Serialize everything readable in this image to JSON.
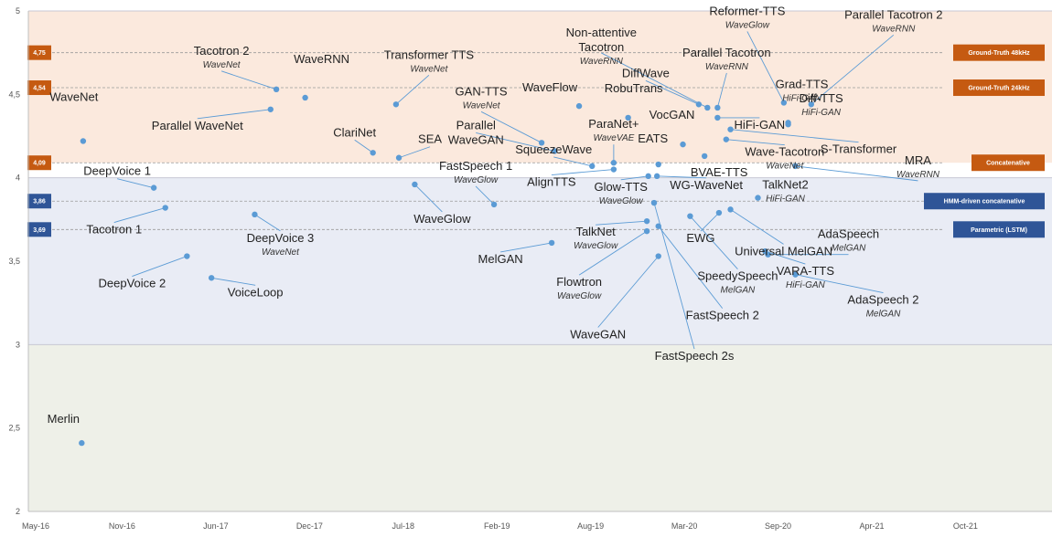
{
  "chart_data": {
    "type": "scatter",
    "title": "",
    "xlabel": "",
    "ylabel": "",
    "ylim": [
      2,
      5
    ],
    "yticks": [
      "2",
      "2,5",
      "3",
      "3,5",
      "4",
      "4,5",
      "5"
    ],
    "xticks": [
      "May-16",
      "Nov-16",
      "Jun-17",
      "Dec-17",
      "Jul-18",
      "Feb-19",
      "Aug-19",
      "Mar-20",
      "Sep-20",
      "Apr-21",
      "Oct-21"
    ],
    "xlim_months": [
      0,
      71
    ],
    "grid": false,
    "bands": [
      {
        "from": 4.09,
        "to": 5.0,
        "color": "#fbe9dd"
      },
      {
        "from": 3.0,
        "to": 4.0,
        "color": "#e9ecf5"
      },
      {
        "from": 2.0,
        "to": 3.0,
        "color": "#eef0e8"
      }
    ],
    "reference_lines": [
      {
        "value": 4.75,
        "left_label": "4,75",
        "right_label": "Ground-Truth 48kHz",
        "color": "#c55a11"
      },
      {
        "value": 4.54,
        "left_label": "4,54",
        "right_label": "Ground-Truth 24kHz",
        "color": "#c55a11"
      },
      {
        "value": 4.09,
        "left_label": "4,09",
        "right_label": "Concatenative",
        "color": "#c55a11"
      },
      {
        "value": 3.86,
        "left_label": "3,86",
        "right_label": "HMM-driven concatenative",
        "color": "#2f5597"
      },
      {
        "value": 3.69,
        "left_label": "3,69",
        "right_label": "Parametric (LSTM)",
        "color": "#2f5597"
      }
    ],
    "points": [
      {
        "name": "Merlin",
        "sub": "",
        "x": 3.7,
        "y": 2.41
      },
      {
        "name": "WaveNet",
        "sub": "",
        "x": 3.8,
        "y": 4.22
      },
      {
        "name": "DeepVoice 1",
        "sub": "",
        "x": 8.7,
        "y": 3.94
      },
      {
        "name": "Tacotron 1",
        "sub": "",
        "x": 9.5,
        "y": 3.82
      },
      {
        "name": "DeepVoice 2",
        "sub": "",
        "x": 11.0,
        "y": 3.53
      },
      {
        "name": "VoiceLoop",
        "sub": "",
        "x": 12.7,
        "y": 3.4
      },
      {
        "name": "DeepVoice 3",
        "sub": "WaveNet",
        "x": 15.7,
        "y": 3.78
      },
      {
        "name": "Parallel WaveNet",
        "sub": "",
        "x": 16.8,
        "y": 4.41
      },
      {
        "name": "Tacotron 2",
        "sub": "WaveNet",
        "x": 17.2,
        "y": 4.53
      },
      {
        "name": "WaveRNN",
        "sub": "",
        "x": 19.2,
        "y": 4.48
      },
      {
        "name": "ClariNet",
        "sub": "",
        "x": 23.9,
        "y": 4.15
      },
      {
        "name": "Transformer TTS",
        "sub": "WaveNet",
        "x": 25.5,
        "y": 4.44
      },
      {
        "name": "SEA",
        "sub": "",
        "x": 25.7,
        "y": 4.12
      },
      {
        "name": "WaveGlow",
        "sub": "",
        "x": 26.8,
        "y": 3.96
      },
      {
        "name": "FastSpeech 1",
        "sub": "WaveGlow",
        "x": 32.3,
        "y": 3.84
      },
      {
        "name": "GAN-TTS",
        "sub": "WaveNet",
        "x": 35.6,
        "y": 4.21
      },
      {
        "name": "Parallel WaveGAN",
        "sub": "",
        "x": 36.5,
        "y": 4.16
      },
      {
        "name": "MelGAN",
        "sub": "",
        "x": 36.3,
        "y": 3.61
      },
      {
        "name": "SqueezeWave",
        "sub": "",
        "x": 39.1,
        "y": 4.07
      },
      {
        "name": "ParaNet+",
        "sub": "WaveVAE",
        "x": 40.6,
        "y": 4.09
      },
      {
        "name": "WaveFlow",
        "sub": "",
        "x": 38.2,
        "y": 4.43
      },
      {
        "name": "AlignTTS",
        "sub": "",
        "x": 40.6,
        "y": 4.05
      },
      {
        "name": "RobuTrans",
        "sub": "",
        "x": 41.6,
        "y": 4.36
      },
      {
        "name": "TalkNet",
        "sub": "WaveGlow",
        "x": 42.9,
        "y": 3.74
      },
      {
        "name": "Flowtron",
        "sub": "WaveGlow",
        "x": 42.9,
        "y": 3.68
      },
      {
        "name": "Glow-TTS",
        "sub": "WaveGlow",
        "x": 43.0,
        "y": 4.01
      },
      {
        "name": "WaveGAN",
        "sub": "",
        "x": 43.7,
        "y": 3.53
      },
      {
        "name": "EATS",
        "sub": "",
        "x": 43.7,
        "y": 4.08
      },
      {
        "name": "FastSpeech 2",
        "sub": "",
        "x": 43.7,
        "y": 3.71
      },
      {
        "name": "FastSpeech 2s",
        "sub": "",
        "x": 43.4,
        "y": 3.85
      },
      {
        "name": "WG-WaveNet",
        "sub": "",
        "x": 43.6,
        "y": 4.01
      },
      {
        "name": "VocGAN",
        "sub": "",
        "x": 45.4,
        "y": 4.2
      },
      {
        "name": "DiffWave",
        "sub": "",
        "x": 46.5,
        "y": 4.44
      },
      {
        "name": "BVAE-TTS",
        "sub": "",
        "x": 46.9,
        "y": 4.13
      },
      {
        "name": "SpeedySpeech",
        "sub": "MelGAN",
        "x": 45.9,
        "y": 3.77
      },
      {
        "name": "Non-attentive Tacotron",
        "sub": "WaveRNN",
        "x": 47.1,
        "y": 4.42
      },
      {
        "name": "Parallel Tacotron",
        "sub": "WaveRNN",
        "x": 47.8,
        "y": 4.42
      },
      {
        "name": "HiFi-GAN",
        "sub": "",
        "x": 47.8,
        "y": 4.36
      },
      {
        "name": "EWG",
        "sub": "",
        "x": 47.9,
        "y": 3.79
      },
      {
        "name": "Wave-Tacotron",
        "sub": "WaveNet",
        "x": 48.4,
        "y": 4.23
      },
      {
        "name": "S-Transformer",
        "sub": "",
        "x": 48.7,
        "y": 4.29
      },
      {
        "name": "Universal MelGAN",
        "sub": "",
        "x": 48.7,
        "y": 3.81
      },
      {
        "name": "TalkNet2",
        "sub": "HiFi-GAN",
        "x": 50.6,
        "y": 3.88
      },
      {
        "name": "VARA-TTS",
        "sub": "HiFi-GAN",
        "x": 51.1,
        "y": 3.56
      },
      {
        "name": "AdaSpeech",
        "sub": "MelGAN",
        "x": 51.3,
        "y": 3.54
      },
      {
        "name": "Reformer-TTS",
        "sub": "WaveGlow",
        "x": 52.4,
        "y": 4.45
      },
      {
        "name": "Grad-TTS",
        "sub": "HiFi-GAN",
        "x": 52.7,
        "y": 4.33
      },
      {
        "name": "Diff-TTS",
        "sub": "HiFi-GAN",
        "x": 52.7,
        "y": 4.32
      },
      {
        "name": "MRA",
        "sub": "WaveRNN",
        "x": 53.2,
        "y": 4.07
      },
      {
        "name": "Parallel Tacotron 2",
        "sub": "WaveRNN",
        "x": 54.3,
        "y": 4.44
      },
      {
        "name": "AdaSpeech 2",
        "sub": "MelGAN",
        "x": 53.2,
        "y": 3.42
      }
    ]
  }
}
